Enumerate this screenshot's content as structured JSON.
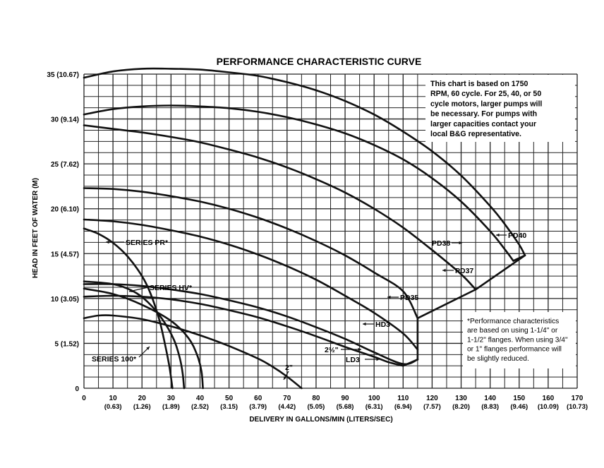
{
  "chart_data": {
    "type": "line",
    "title": "PERFORMANCE CHARACTERISTIC CURVE",
    "xlabel": "DELIVERY IN GALLONS/MIN (LITERS/SEC)",
    "ylabel": "HEAD IN FEET OF WATER (M)",
    "xlim": [
      0,
      170
    ],
    "ylim": [
      0,
      35
    ],
    "grid": true,
    "x_ticks": [
      {
        "label": "0",
        "sub": ""
      },
      {
        "label": "10",
        "sub": "(0.63)"
      },
      {
        "label": "20",
        "sub": "(1.26)"
      },
      {
        "label": "30",
        "sub": "(1.89)"
      },
      {
        "label": "40",
        "sub": "(2.52)"
      },
      {
        "label": "50",
        "sub": "(3.15)"
      },
      {
        "label": "60",
        "sub": "(3.79)"
      },
      {
        "label": "70",
        "sub": "(4.42)"
      },
      {
        "label": "80",
        "sub": "(5.05)"
      },
      {
        "label": "90",
        "sub": "(5.68)"
      },
      {
        "label": "100",
        "sub": "(6.31)"
      },
      {
        "label": "110",
        "sub": "(6.94)"
      },
      {
        "label": "120",
        "sub": "(7.57)"
      },
      {
        "label": "130",
        "sub": "(8.20)"
      },
      {
        "label": "140",
        "sub": "(8.83)"
      },
      {
        "label": "150",
        "sub": "(9.46)"
      },
      {
        "label": "160",
        "sub": "(10.09)"
      },
      {
        "label": "170",
        "sub": "(10.73)"
      }
    ],
    "y_ticks": [
      {
        "value": 0,
        "label": "0"
      },
      {
        "value": 5,
        "label": "5 (1.52)"
      },
      {
        "value": 10,
        "label": "10 (3.05)"
      },
      {
        "value": 15,
        "label": "15 (4.57)"
      },
      {
        "value": 20,
        "label": "20 (6.10)"
      },
      {
        "value": 25,
        "label": "25 (7.62)"
      },
      {
        "value": 30,
        "label": "30 (9.14)"
      },
      {
        "value": 35,
        "label": "35 (10.67)"
      }
    ],
    "series": [
      {
        "name": "PD40",
        "points": [
          [
            0,
            34.6
          ],
          [
            10,
            35.3
          ],
          [
            20,
            35.6
          ],
          [
            30,
            35.6
          ],
          [
            40,
            35.5
          ],
          [
            50,
            35.2
          ],
          [
            60,
            34.8
          ],
          [
            70,
            34.1
          ],
          [
            80,
            33.2
          ],
          [
            90,
            32.0
          ],
          [
            100,
            30.5
          ],
          [
            110,
            28.6
          ],
          [
            120,
            26.4
          ],
          [
            130,
            23.7
          ],
          [
            140,
            20.3
          ],
          [
            145,
            18.3
          ],
          [
            150,
            16.0
          ],
          [
            152,
            14.8
          ]
        ]
      },
      {
        "name": "PD38",
        "points": [
          [
            0,
            30.5
          ],
          [
            10,
            31.1
          ],
          [
            20,
            31.4
          ],
          [
            30,
            31.5
          ],
          [
            40,
            31.4
          ],
          [
            50,
            31.2
          ],
          [
            60,
            30.8
          ],
          [
            70,
            30.2
          ],
          [
            80,
            29.4
          ],
          [
            90,
            28.4
          ],
          [
            100,
            27.1
          ],
          [
            110,
            25.5
          ],
          [
            120,
            23.4
          ],
          [
            130,
            20.8
          ],
          [
            140,
            17.5
          ],
          [
            145,
            15.5
          ],
          [
            148,
            14.2
          ]
        ]
      },
      {
        "name": "PD37",
        "points": [
          [
            0,
            29.3
          ],
          [
            10,
            28.9
          ],
          [
            20,
            28.5
          ],
          [
            30,
            28.0
          ],
          [
            40,
            27.4
          ],
          [
            50,
            26.6
          ],
          [
            60,
            25.7
          ],
          [
            70,
            24.6
          ],
          [
            80,
            23.3
          ],
          [
            90,
            21.8
          ],
          [
            100,
            20.0
          ],
          [
            110,
            17.9
          ],
          [
            120,
            15.4
          ],
          [
            130,
            12.7
          ],
          [
            135,
            11.0
          ]
        ]
      },
      {
        "name": "PD35",
        "points": [
          [
            0,
            22.3
          ],
          [
            10,
            22.2
          ],
          [
            20,
            21.9
          ],
          [
            30,
            21.4
          ],
          [
            40,
            20.8
          ],
          [
            50,
            20.0
          ],
          [
            60,
            19.0
          ],
          [
            70,
            17.8
          ],
          [
            80,
            16.4
          ],
          [
            90,
            14.8
          ],
          [
            100,
            12.9
          ],
          [
            110,
            10.8
          ],
          [
            115,
            7.8
          ]
        ]
      },
      {
        "name": "HD3",
        "points": [
          [
            0,
            18.8
          ],
          [
            10,
            18.6
          ],
          [
            20,
            18.2
          ],
          [
            30,
            17.6
          ],
          [
            40,
            16.9
          ],
          [
            50,
            16.0
          ],
          [
            60,
            14.9
          ],
          [
            70,
            13.6
          ],
          [
            80,
            12.1
          ],
          [
            90,
            10.3
          ],
          [
            100,
            8.4
          ],
          [
            110,
            6.1
          ],
          [
            115,
            4.3
          ]
        ]
      },
      {
        "name": "2½\"",
        "points": [
          [
            0,
            11.6
          ],
          [
            10,
            11.6
          ],
          [
            20,
            11.4
          ],
          [
            30,
            11.0
          ],
          [
            40,
            10.5
          ],
          [
            50,
            9.8
          ],
          [
            60,
            9.0
          ],
          [
            70,
            8.0
          ],
          [
            80,
            6.8
          ],
          [
            90,
            5.5
          ],
          [
            100,
            4.0
          ],
          [
            110,
            2.7
          ],
          [
            115,
            3.2
          ]
        ]
      },
      {
        "name": "LD3",
        "points": [
          [
            0,
            10.2
          ],
          [
            10,
            10.3
          ],
          [
            20,
            10.2
          ],
          [
            30,
            9.9
          ],
          [
            40,
            9.4
          ],
          [
            50,
            8.7
          ],
          [
            60,
            7.9
          ],
          [
            70,
            6.9
          ],
          [
            80,
            5.8
          ],
          [
            90,
            4.6
          ],
          [
            100,
            3.5
          ],
          [
            105,
            2.9
          ],
          [
            110,
            2.5
          ]
        ]
      },
      {
        "name": "2\"",
        "points": [
          [
            0,
            7.8
          ],
          [
            5,
            8.1
          ],
          [
            10,
            8.1
          ],
          [
            20,
            7.7
          ],
          [
            30,
            6.9
          ],
          [
            40,
            5.9
          ],
          [
            50,
            4.7
          ],
          [
            60,
            3.3
          ],
          [
            65,
            2.4
          ],
          [
            70,
            1.3
          ],
          [
            75,
            0
          ]
        ]
      },
      {
        "name": "SERIES PR*",
        "points": [
          [
            0,
            17.8
          ],
          [
            5,
            17.2
          ],
          [
            10,
            16.2
          ],
          [
            15,
            14.7
          ],
          [
            20,
            12.5
          ],
          [
            23,
            10.5
          ],
          [
            26,
            7.6
          ],
          [
            28,
            4.8
          ],
          [
            29.5,
            2.3
          ],
          [
            30.5,
            0
          ]
        ]
      },
      {
        "name": "SERIES HV*",
        "points": [
          [
            0,
            11.9
          ],
          [
            10,
            11.6
          ],
          [
            17,
            10.8
          ],
          [
            22,
            9.6
          ],
          [
            27,
            7.7
          ],
          [
            31,
            5.4
          ],
          [
            33,
            3.4
          ],
          [
            34,
            1.7
          ],
          [
            34.5,
            0
          ]
        ]
      },
      {
        "name": "SERIES 100*",
        "points": [
          [
            0,
            11.1
          ],
          [
            10,
            10.5
          ],
          [
            20,
            9.3
          ],
          [
            30,
            7.5
          ],
          [
            36,
            5.6
          ],
          [
            39,
            3.7
          ],
          [
            40.5,
            1.9
          ],
          [
            41,
            0
          ]
        ]
      }
    ],
    "annotations": {
      "series_labels": [
        {
          "text": "PD40"
        },
        {
          "text": "PD38"
        },
        {
          "text": "PD37"
        },
        {
          "text": "PD35"
        },
        {
          "text": "HD3"
        },
        {
          "text": "2½\""
        },
        {
          "text": "LD3"
        },
        {
          "text": "2\""
        },
        {
          "text": "SERIES PR*"
        },
        {
          "text": "SERIES HV*"
        },
        {
          "text": "SERIES 100*"
        }
      ],
      "note_top": [
        "This chart is based on 1750",
        "RPM, 60 cycle.  For 25, 40, or 50",
        "cycle motors, larger pumps will",
        "be necessary.  For pumps with",
        "larger capacities contact your",
        "local B&G representative."
      ],
      "note_bottom": [
        "*Performance characteristics",
        "are based on using 1-1/4\" or",
        "1-1/2\" flanges. When using 3/4\"",
        "or 1\" flanges performance will",
        "be slightly reduced."
      ]
    }
  }
}
